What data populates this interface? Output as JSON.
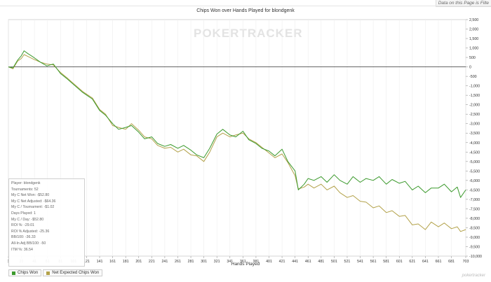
{
  "topnote": "Data on this Page is Filte",
  "watermark": "POKERTRACKER",
  "footmark": "pokertracker",
  "legend": [
    {
      "label": "Chips Won",
      "color": "#3c9a2d"
    },
    {
      "label": "Net Expected Chips Won",
      "color": "#b3a24a"
    }
  ],
  "stats": [
    "Player: blondgenk",
    "Tournaments: 52",
    "My C Net Won: -$52.80",
    "My C Net Adjusted: -$64.36",
    "My C / Tournament: -$1.02",
    "Days Played: 1",
    "My C / Day: -$52.80",
    "ROI %: -29.01",
    "ROI % Adjusted: -25.36",
    "BB/100: -36.33",
    "All-In Adj BB/100: -50",
    "ITM %: 36.54"
  ],
  "chart_data": {
    "type": "line",
    "title": "Chips Won over Hands Played for blondgenk",
    "xlabel": "Hands Played",
    "ylabel": "",
    "xlim": [
      1,
      703
    ],
    "ylim": [
      -10000,
      2500
    ],
    "y_ticks": [
      2500,
      2000,
      1500,
      1000,
      500,
      0,
      -500,
      -1000,
      -1500,
      -2000,
      -2500,
      -3000,
      -3500,
      -4000,
      -4500,
      -5000,
      -5500,
      -6000,
      -6500,
      -7000,
      -7500,
      -8000,
      -8500,
      -9000,
      -9500,
      -10000
    ],
    "y_tick_labels": [
      "2,500",
      "2,000",
      "1,500",
      "1,000",
      "500",
      "0",
      "-500",
      "-1,000",
      "-1,500",
      "-2,000",
      "-2,500",
      "-3,000",
      "-3,500",
      "-4,000",
      "-4,500",
      "-5,000",
      "-5,500",
      "-6,000",
      "-6,500",
      "-7,000",
      "-7,500",
      "-8,000",
      "-8,500",
      "-9,000",
      "-9,500",
      "-10,000"
    ],
    "x_ticks": [
      1,
      21,
      41,
      61,
      81,
      101,
      121,
      141,
      161,
      181,
      201,
      221,
      241,
      261,
      281,
      301,
      321,
      341,
      361,
      381,
      401,
      421,
      441,
      461,
      481,
      501,
      521,
      541,
      561,
      581,
      601,
      621,
      641,
      661,
      681,
      703
    ],
    "series": [
      {
        "name": "Chips Won",
        "color": "#3c9a2d",
        "x": [
          1,
          8,
          15,
          21,
          25,
          31,
          40,
          50,
          60,
          70,
          81,
          90,
          100,
          115,
          130,
          141,
          150,
          161,
          170,
          181,
          190,
          201,
          210,
          221,
          230,
          241,
          250,
          261,
          270,
          281,
          290,
          301,
          310,
          321,
          330,
          341,
          350,
          361,
          370,
          381,
          390,
          401,
          410,
          421,
          430,
          441,
          446,
          455,
          461,
          470,
          481,
          490,
          501,
          510,
          521,
          530,
          541,
          550,
          561,
          570,
          581,
          590,
          601,
          610,
          621,
          630,
          641,
          650,
          661,
          670,
          681,
          690,
          695,
          703
        ],
        "values": [
          0,
          -50,
          350,
          600,
          850,
          700,
          500,
          250,
          50,
          150,
          -350,
          -600,
          -900,
          -1350,
          -1700,
          -2300,
          -2550,
          -3000,
          -3300,
          -3200,
          -3100,
          -3450,
          -3800,
          -3700,
          -4050,
          -4200,
          -4100,
          -4300,
          -4150,
          -4400,
          -4650,
          -4800,
          -4300,
          -3550,
          -3300,
          -3600,
          -3700,
          -3400,
          -3850,
          -4050,
          -4300,
          -4450,
          -4700,
          -4350,
          -5000,
          -5500,
          -6500,
          -6200,
          -5900,
          -6000,
          -5800,
          -6100,
          -5700,
          -6000,
          -6200,
          -5800,
          -6100,
          -5900,
          -6000,
          -5800,
          -6200,
          -5950,
          -6150,
          -6050,
          -6500,
          -6300,
          -6650,
          -6400,
          -6400,
          -6200,
          -6600,
          -6350,
          -6900,
          -6500
        ]
      },
      {
        "name": "Net Expected Chips Won",
        "color": "#b3a24a",
        "x": [
          1,
          8,
          15,
          21,
          25,
          31,
          40,
          50,
          60,
          70,
          81,
          90,
          100,
          115,
          130,
          141,
          150,
          161,
          170,
          181,
          190,
          201,
          210,
          221,
          230,
          241,
          250,
          261,
          270,
          281,
          290,
          301,
          310,
          321,
          330,
          341,
          350,
          361,
          370,
          381,
          390,
          401,
          410,
          421,
          430,
          441,
          446,
          455,
          461,
          470,
          481,
          490,
          501,
          510,
          521,
          530,
          541,
          550,
          561,
          570,
          581,
          590,
          601,
          610,
          621,
          630,
          641,
          650,
          661,
          670,
          681,
          690,
          695,
          703
        ],
        "values": [
          0,
          -100,
          300,
          450,
          650,
          550,
          400,
          250,
          150,
          100,
          -300,
          -550,
          -850,
          -1300,
          -1650,
          -2250,
          -2500,
          -3100,
          -3200,
          -3300,
          -3000,
          -3350,
          -3700,
          -3800,
          -4150,
          -4300,
          -4250,
          -4500,
          -4350,
          -4650,
          -4700,
          -5000,
          -4500,
          -3700,
          -3500,
          -3700,
          -3600,
          -3500,
          -3800,
          -4000,
          -4250,
          -4550,
          -4800,
          -4600,
          -5050,
          -5750,
          -6450,
          -6350,
          -6200,
          -6400,
          -6200,
          -6500,
          -6300,
          -6650,
          -6900,
          -6800,
          -7100,
          -7150,
          -7450,
          -7350,
          -7700,
          -7600,
          -7900,
          -7850,
          -8350,
          -8300,
          -8600,
          -8200,
          -8450,
          -8250,
          -8550,
          -8450,
          -8700,
          -8600
        ]
      }
    ]
  }
}
